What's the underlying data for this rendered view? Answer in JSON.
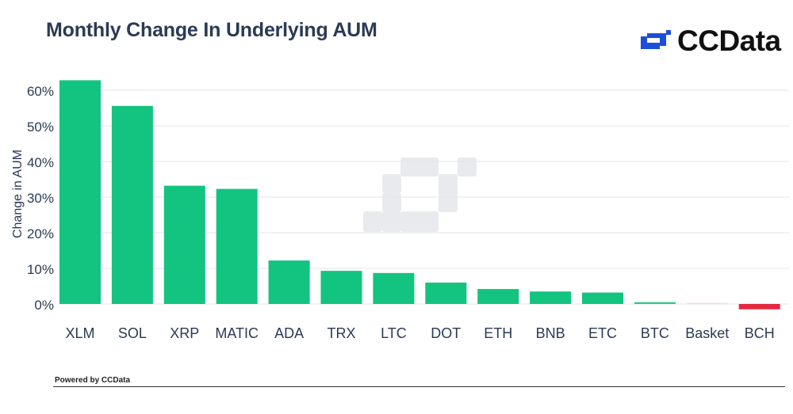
{
  "title": "Monthly Change In Underlying AUM",
  "brand": {
    "name": "CCData",
    "logo_icon": "ccdata-logo-icon",
    "logo_color": "#1c4fd8"
  },
  "footer": {
    "text": "Powered by CCData"
  },
  "watermark_icon": "ccdata-logo-watermark-icon",
  "colors": {
    "positive": "#12c47f",
    "negative": "#e3293f",
    "axis_text": "#2b3a55",
    "grid": "#e3e6ea"
  },
  "chart_data": {
    "type": "bar",
    "title": "Monthly Change In Underlying AUM",
    "xlabel": "",
    "ylabel": "Change in AUM",
    "ylim": [
      -2,
      65
    ],
    "yticks": [
      0,
      10,
      20,
      30,
      40,
      50,
      60
    ],
    "ytick_labels": [
      "0%",
      "10%",
      "20%",
      "30%",
      "40%",
      "50%",
      "60%"
    ],
    "grid": true,
    "categories": [
      "XLM",
      "SOL",
      "XRP",
      "MATIC",
      "ADA",
      "TRX",
      "LTC",
      "DOT",
      "ETH",
      "BNB",
      "ETC",
      "BTC",
      "Basket",
      "BCH"
    ],
    "values": [
      62.8,
      55.6,
      33.2,
      32.3,
      12.2,
      9.3,
      8.7,
      6.0,
      4.2,
      3.5,
      3.2,
      0.5,
      0.3,
      -1.5
    ]
  }
}
